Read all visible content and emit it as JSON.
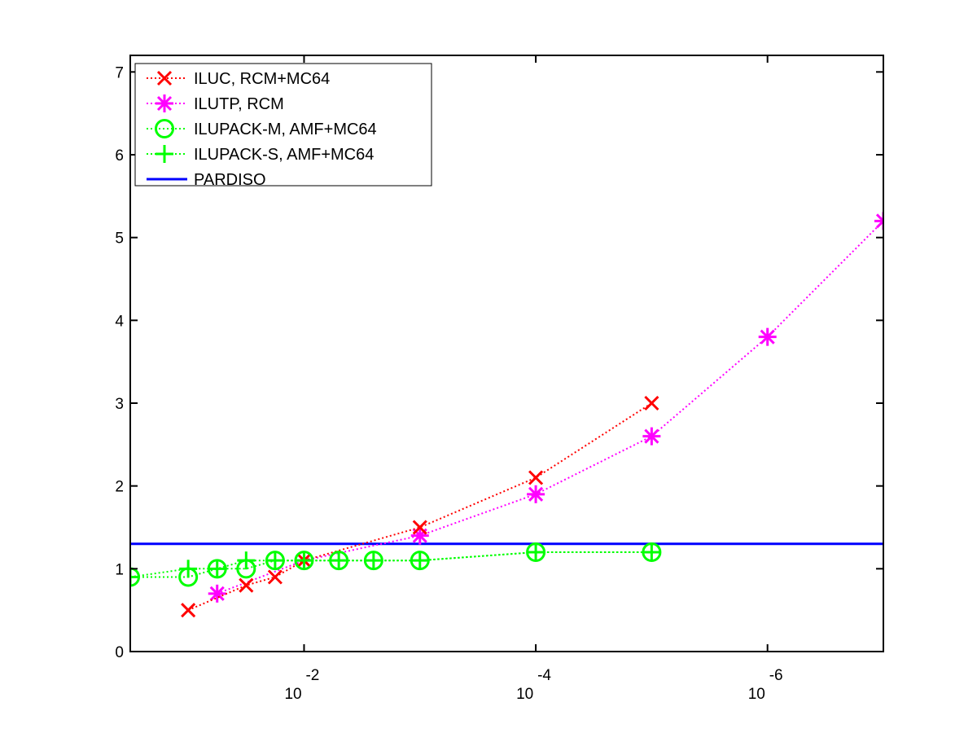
{
  "chart_data": {
    "type": "line",
    "title": "",
    "xlabel": "",
    "ylabel": "",
    "x_scale": "log-reversed",
    "xlim": [
      0.3162,
      1e-07
    ],
    "ylim": [
      0,
      7.2
    ],
    "grid": false,
    "legend_placement": "top-left",
    "x_ticks": [
      {
        "value": 0.01,
        "base": "10",
        "exp": "-2"
      },
      {
        "value": 0.0001,
        "base": "10",
        "exp": "-4"
      },
      {
        "value": 1e-06,
        "base": "10",
        "exp": "-6"
      }
    ],
    "y_ticks": [
      "0",
      "1",
      "2",
      "3",
      "4",
      "5",
      "6",
      "7"
    ],
    "series": [
      {
        "name": "ILUC, RCM+MC64",
        "color": "#ff0000",
        "marker": "x",
        "line": "dotted",
        "x": [
          0.1,
          0.03162,
          0.01778,
          0.01,
          0.001,
          0.0001,
          1e-05
        ],
        "y": [
          0.5,
          0.8,
          0.9,
          1.1,
          1.5,
          2.1,
          3.0
        ]
      },
      {
        "name": "ILUTP, RCM",
        "color": "#ff00ff",
        "marker": "asterisk",
        "line": "dotted",
        "x": [
          0.05623,
          0.01,
          0.001,
          0.0001,
          1e-05,
          1e-06,
          1e-07
        ],
        "y": [
          0.7,
          1.1,
          1.4,
          1.9,
          2.6,
          3.8,
          5.2
        ]
      },
      {
        "name": "ILUPACK-M, AMF+MC64",
        "color": "#00ff00",
        "marker": "circle",
        "line": "dotted",
        "x": [
          0.3162,
          0.1,
          0.05623,
          0.03162,
          0.01778,
          0.01,
          0.005012,
          0.002512,
          0.001,
          0.0001,
          1e-05
        ],
        "y": [
          0.9,
          0.9,
          1.0,
          1.0,
          1.1,
          1.1,
          1.1,
          1.1,
          1.1,
          1.2,
          1.2
        ]
      },
      {
        "name": "ILUPACK-S, AMF+MC64",
        "color": "#00ff00",
        "marker": "plus",
        "line": "dotted",
        "x": [
          0.3162,
          0.1,
          0.05623,
          0.03162,
          0.01778,
          0.01,
          0.005012,
          0.002512,
          0.001,
          0.0001,
          1e-05
        ],
        "y": [
          0.9,
          1.0,
          1.0,
          1.1,
          1.1,
          1.1,
          1.1,
          1.1,
          1.1,
          1.2,
          1.2
        ]
      },
      {
        "name": "PARDISO",
        "color": "#0000ff",
        "marker": "none",
        "line": "solid",
        "x": [
          0.3162,
          1e-07
        ],
        "y": [
          1.3,
          1.3
        ]
      }
    ]
  }
}
